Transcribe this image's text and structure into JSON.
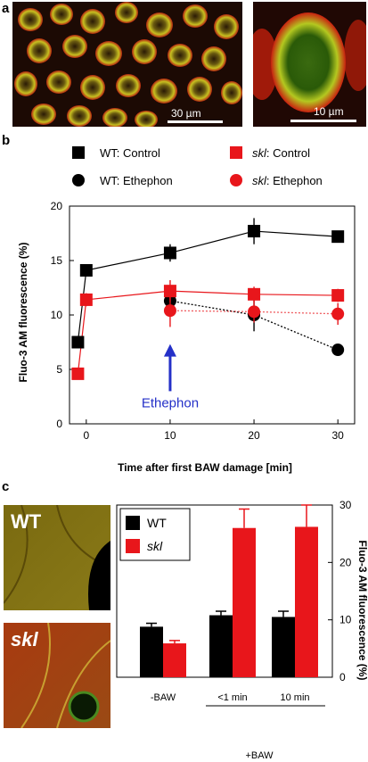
{
  "panels": {
    "a": "a",
    "b": "b",
    "c": "c"
  },
  "panel_a": {
    "left_scale": "30 µm",
    "right_scale": "10 µm"
  },
  "panel_c_images": {
    "top_label": "WT",
    "bottom_label": "skl"
  },
  "legend_b": [
    {
      "prefix": "WT",
      "suffix": ": Control",
      "color": "#000000",
      "marker": "square",
      "italic": false
    },
    {
      "prefix": "skl",
      "suffix": ": Control",
      "color": "#e8161b",
      "marker": "square",
      "italic": true
    },
    {
      "prefix": "WT",
      "suffix": ": Ethephon",
      "color": "#000000",
      "marker": "circle",
      "italic": false
    },
    {
      "prefix": "skl",
      "suffix": ": Ethephon",
      "color": "#e8161b",
      "marker": "circle",
      "italic": true
    }
  ],
  "colors": {
    "wt": "#000000",
    "skl": "#e8161b",
    "annotation": "#2430c8"
  },
  "chart_data": [
    {
      "type": "line",
      "xlabel": "Time after first BAW damage [min]",
      "ylabel": "Fluo-3 AM fluorescence (%)",
      "xlim": [
        -2,
        32
      ],
      "ylim": [
        0,
        20
      ],
      "xticks": [
        0,
        10,
        20,
        30
      ],
      "yticks": [
        0,
        5,
        10,
        15,
        20
      ],
      "series": [
        {
          "name": "WT: Control",
          "color": "#000000",
          "marker": "square",
          "line": "solid",
          "points": [
            [
              -1,
              7.5
            ],
            [
              0,
              14.1
            ],
            [
              10,
              15.7
            ],
            [
              20,
              17.7
            ],
            [
              30,
              17.2
            ]
          ],
          "err": [
            0,
            0.5,
            0.8,
            1.2,
            0.5
          ]
        },
        {
          "name": "skl: Control",
          "color": "#e8161b",
          "marker": "square",
          "line": "solid",
          "points": [
            [
              -1,
              4.6
            ],
            [
              0,
              11.4
            ],
            [
              10,
              12.2
            ],
            [
              20,
              11.9
            ],
            [
              30,
              11.8
            ]
          ],
          "err": [
            0,
            0.6,
            1.0,
            0.7,
            0.6
          ]
        },
        {
          "name": "WT: Ethephon",
          "color": "#000000",
          "marker": "circle",
          "line": "dotted",
          "points": [
            [
              10,
              11.3
            ],
            [
              20,
              10.0
            ],
            [
              30,
              6.8
            ]
          ],
          "err": [
            0,
            1.5,
            0
          ]
        },
        {
          "name": "skl: Ethephon",
          "color": "#e8161b",
          "marker": "circle",
          "line": "dotted",
          "points": [
            [
              10,
              10.4
            ],
            [
              20,
              10.3
            ],
            [
              30,
              10.1
            ]
          ],
          "err": [
            1.5,
            1.0,
            1.0
          ]
        }
      ],
      "annotation": {
        "text": "Ethephon",
        "x": 10,
        "arrow_from": 3,
        "arrow_to": 7
      }
    },
    {
      "type": "bar",
      "ylabel": "Fluo-3 AM fluorescence (%)",
      "ylim": [
        0,
        30
      ],
      "yticks": [
        0,
        10,
        20,
        30
      ],
      "categories": [
        "-BAW",
        "<1 min",
        "10 min"
      ],
      "group_label": "+BAW",
      "series": [
        {
          "name": "WT",
          "color": "#000000",
          "values": [
            8.8,
            10.8,
            10.5
          ],
          "err": [
            0.6,
            0.7,
            1.0
          ]
        },
        {
          "name": "skl",
          "color": "#e8161b",
          "values": [
            5.9,
            26.0,
            26.2
          ],
          "err": [
            0.5,
            3.3,
            3.8
          ]
        }
      ],
      "legend": "top-left"
    }
  ]
}
